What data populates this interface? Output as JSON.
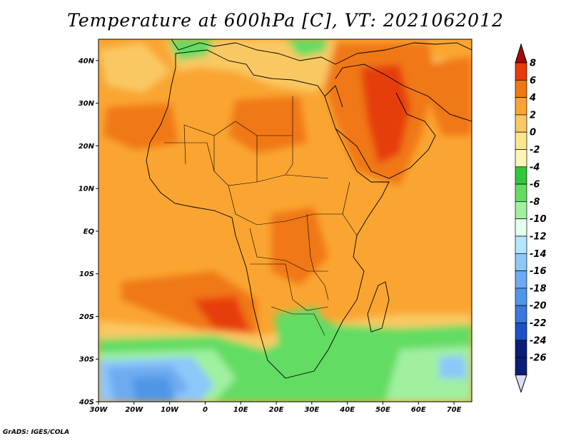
{
  "title": "Temperature at 600hPa [C], VT: 2021062012",
  "credit": "GrADS: IGES/COLA",
  "map": {
    "lon_range": [
      -30,
      75
    ],
    "lat_range": [
      -40,
      45
    ],
    "lat_ticks": [
      {
        "value": 40,
        "label": "40N"
      },
      {
        "value": 30,
        "label": "30N"
      },
      {
        "value": 20,
        "label": "20N"
      },
      {
        "value": 10,
        "label": "10N"
      },
      {
        "value": 0,
        "label": "EQ"
      },
      {
        "value": -10,
        "label": "10S"
      },
      {
        "value": -20,
        "label": "20S"
      },
      {
        "value": -30,
        "label": "30S"
      },
      {
        "value": -40,
        "label": "40S"
      }
    ],
    "lon_ticks": [
      {
        "value": -30,
        "label": "30W"
      },
      {
        "value": -20,
        "label": "20W"
      },
      {
        "value": -10,
        "label": "10W"
      },
      {
        "value": 0,
        "label": "0"
      },
      {
        "value": 10,
        "label": "10E"
      },
      {
        "value": 20,
        "label": "20E"
      },
      {
        "value": 30,
        "label": "30E"
      },
      {
        "value": 40,
        "label": "40E"
      },
      {
        "value": 50,
        "label": "50E"
      },
      {
        "value": 60,
        "label": "60E"
      },
      {
        "value": 70,
        "label": "70E"
      }
    ]
  },
  "colorbar": {
    "unit": "C",
    "levels": [
      {
        "label": "8",
        "color": "#a50a0a"
      },
      {
        "label": "6",
        "color": "#e63c0a"
      },
      {
        "label": "4",
        "color": "#f07814"
      },
      {
        "label": "2",
        "color": "#faa532"
      },
      {
        "label": "0",
        "color": "#fac864"
      },
      {
        "label": "-2",
        "color": "#fae68c"
      },
      {
        "label": "-4",
        "color": "#fff5b4"
      },
      {
        "label": "-6",
        "color": "#32c83c"
      },
      {
        "label": "-8",
        "color": "#64dc64"
      },
      {
        "label": "-10",
        "color": "#a0f0a0"
      },
      {
        "label": "-12",
        "color": "#e6fff0"
      },
      {
        "label": "-14",
        "color": "#b4e6ff"
      },
      {
        "label": "-16",
        "color": "#8cc8fa"
      },
      {
        "label": "-18",
        "color": "#6eaaf0"
      },
      {
        "label": "-20",
        "color": "#5096e6"
      },
      {
        "label": "-22",
        "color": "#3c78dc"
      },
      {
        "label": "-24",
        "color": "#1e50c8"
      },
      {
        "label": "-26",
        "color": "#0a1e78"
      }
    ],
    "below_color": "#dcdcf5"
  },
  "field_colors": {
    "background_warm": "#faa532",
    "hot": "#f07814",
    "very_hot": "#e63c0a",
    "mild": "#fac864",
    "cool_green": "#64dc64",
    "green": "#32c83c",
    "pale_green": "#a0f0a0",
    "light_blue": "#8cc8fa",
    "blue": "#6eaaf0",
    "deep_blue": "#5096e6"
  }
}
